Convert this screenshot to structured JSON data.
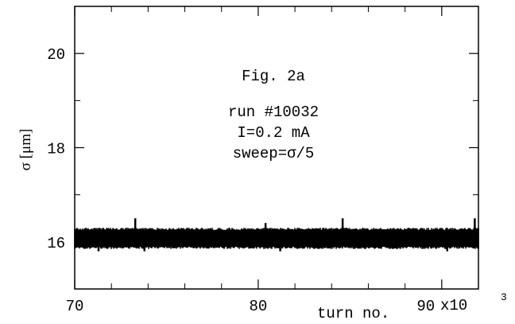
{
  "chart_data": {
    "type": "scatter",
    "title": "",
    "xlabel": "turn no.",
    "ylabel": "σ [μm]",
    "x_multiplier_label": "x10",
    "x_multiplier_exp": "3",
    "xlim": [
      70,
      92
    ],
    "ylim": [
      15,
      21
    ],
    "x_ticks": [
      70,
      80,
      90
    ],
    "x_tick_labels": [
      "70",
      "80",
      "90"
    ],
    "x_minor_ticks": [
      72,
      74,
      76,
      78,
      82,
      84,
      86,
      88
    ],
    "y_ticks": [
      16,
      18,
      20
    ],
    "y_tick_labels": [
      "16",
      "18",
      "20"
    ],
    "y_minor_ticks": [
      17,
      19
    ],
    "grid": false,
    "annotations": [
      "Fig. 2a",
      "run #10032",
      "I=0.2 mA",
      "sweep=σ/5"
    ],
    "series": [
      {
        "x_start": 70,
        "x_end": 92,
        "baseline": 16.0,
        "band_low": 15.9,
        "band_high": 16.25,
        "peak_values": [
          [
            73.3,
            16.5
          ],
          [
            80.4,
            16.4
          ],
          [
            84.6,
            16.5
          ],
          [
            91.8,
            16.5
          ]
        ],
        "dip_values": [
          [
            71.3,
            15.8
          ],
          [
            73.8,
            15.8
          ],
          [
            81.2,
            15.8
          ],
          [
            90.3,
            15.8
          ]
        ]
      }
    ]
  }
}
